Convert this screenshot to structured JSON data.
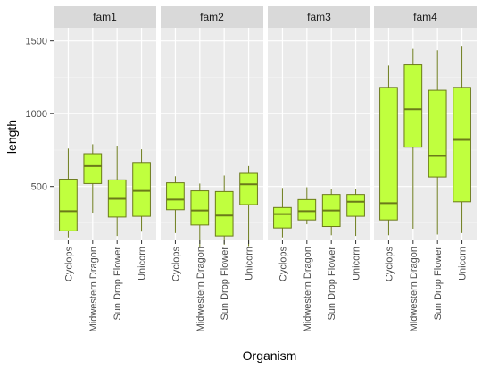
{
  "chart_data": {
    "type": "boxplot",
    "xlabel": "Organism",
    "ylabel": "length",
    "categories": [
      "Cyclops",
      "Midwestern Dragon",
      "Sun Drop Flower",
      "Unicorn"
    ],
    "yticks": [
      500,
      1000,
      1500
    ],
    "ylim": [
      130,
      1590
    ],
    "grid": true,
    "box_fill": "#c0ff3e",
    "box_stroke": "#6b7a1a",
    "panel_bg": "#ebebeb",
    "strip_bg": "#d9d9d9",
    "facets": [
      {
        "label": "fam1",
        "boxes": [
          {
            "category": "Cyclops",
            "min": 150,
            "q1": 195,
            "median": 330,
            "q3": 550,
            "max": 760
          },
          {
            "category": "Midwestern Dragon",
            "min": 320,
            "q1": 520,
            "median": 640,
            "q3": 725,
            "max": 790
          },
          {
            "category": "Sun Drop Flower",
            "min": 160,
            "q1": 290,
            "median": 415,
            "q3": 545,
            "max": 780
          },
          {
            "category": "Unicorn",
            "min": 190,
            "q1": 295,
            "median": 470,
            "q3": 665,
            "max": 755
          }
        ]
      },
      {
        "label": "fam2",
        "boxes": [
          {
            "category": "Cyclops",
            "min": 180,
            "q1": 340,
            "median": 410,
            "q3": 525,
            "max": 570
          },
          {
            "category": "Midwestern Dragon",
            "min": 80,
            "q1": 235,
            "median": 335,
            "q3": 470,
            "max": 520
          },
          {
            "category": "Sun Drop Flower",
            "min": 100,
            "q1": 160,
            "median": 300,
            "q3": 465,
            "max": 575
          },
          {
            "category": "Unicorn",
            "min": 90,
            "q1": 375,
            "median": 515,
            "q3": 590,
            "max": 640
          }
        ]
      },
      {
        "label": "fam3",
        "boxes": [
          {
            "category": "Cyclops",
            "min": 150,
            "q1": 215,
            "median": 310,
            "q3": 355,
            "max": 490
          },
          {
            "category": "Midwestern Dragon",
            "min": 240,
            "q1": 270,
            "median": 330,
            "q3": 410,
            "max": 495
          },
          {
            "category": "Sun Drop Flower",
            "min": 165,
            "q1": 225,
            "median": 335,
            "q3": 445,
            "max": 480
          },
          {
            "category": "Unicorn",
            "min": 160,
            "q1": 295,
            "median": 395,
            "q3": 445,
            "max": 485
          }
        ]
      },
      {
        "label": "fam4",
        "boxes": [
          {
            "category": "Cyclops",
            "min": 165,
            "q1": 270,
            "median": 385,
            "q3": 1180,
            "max": 1330
          },
          {
            "category": "Midwestern Dragon",
            "min": 210,
            "q1": 770,
            "median": 1030,
            "q3": 1335,
            "max": 1445
          },
          {
            "category": "Sun Drop Flower",
            "min": 170,
            "q1": 565,
            "median": 710,
            "q3": 1160,
            "max": 1435
          },
          {
            "category": "Unicorn",
            "min": 180,
            "q1": 395,
            "median": 820,
            "q3": 1180,
            "max": 1460
          }
        ]
      }
    ]
  }
}
